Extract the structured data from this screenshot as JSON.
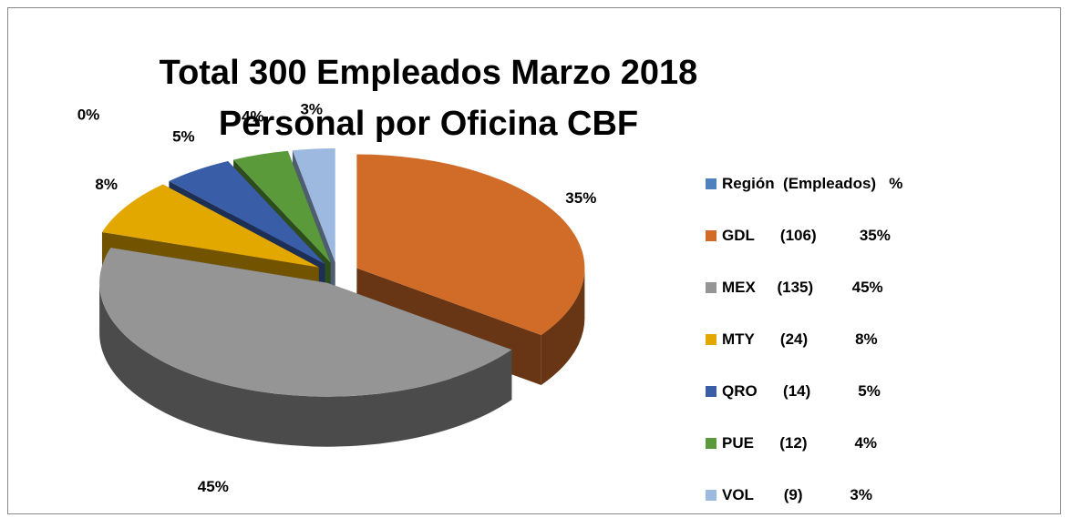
{
  "chart_data": {
    "type": "pie",
    "title": "Total 300 Empleados Marzo 2018 Personal por Oficina CBF",
    "categories": [
      "Región  (Empleados)   %",
      "GDL      (106)          35%",
      "MEX     (135)         45%",
      "MTY      (24)           8%",
      "QRO      (14)           5%",
      "PUE      (12)           4%",
      "VOL       (9)           3%"
    ],
    "values": [
      0,
      35,
      45,
      8,
      5,
      4,
      3
    ],
    "value_labels": [
      "0%",
      "35%",
      "45%",
      "8%",
      "5%",
      "4%",
      "3%"
    ],
    "colors": [
      "#4f81bd",
      "#d06b28",
      "#959595",
      "#e3a800",
      "#3a5da8",
      "#5b9a3a",
      "#9db9e0"
    ],
    "legend": "right"
  }
}
